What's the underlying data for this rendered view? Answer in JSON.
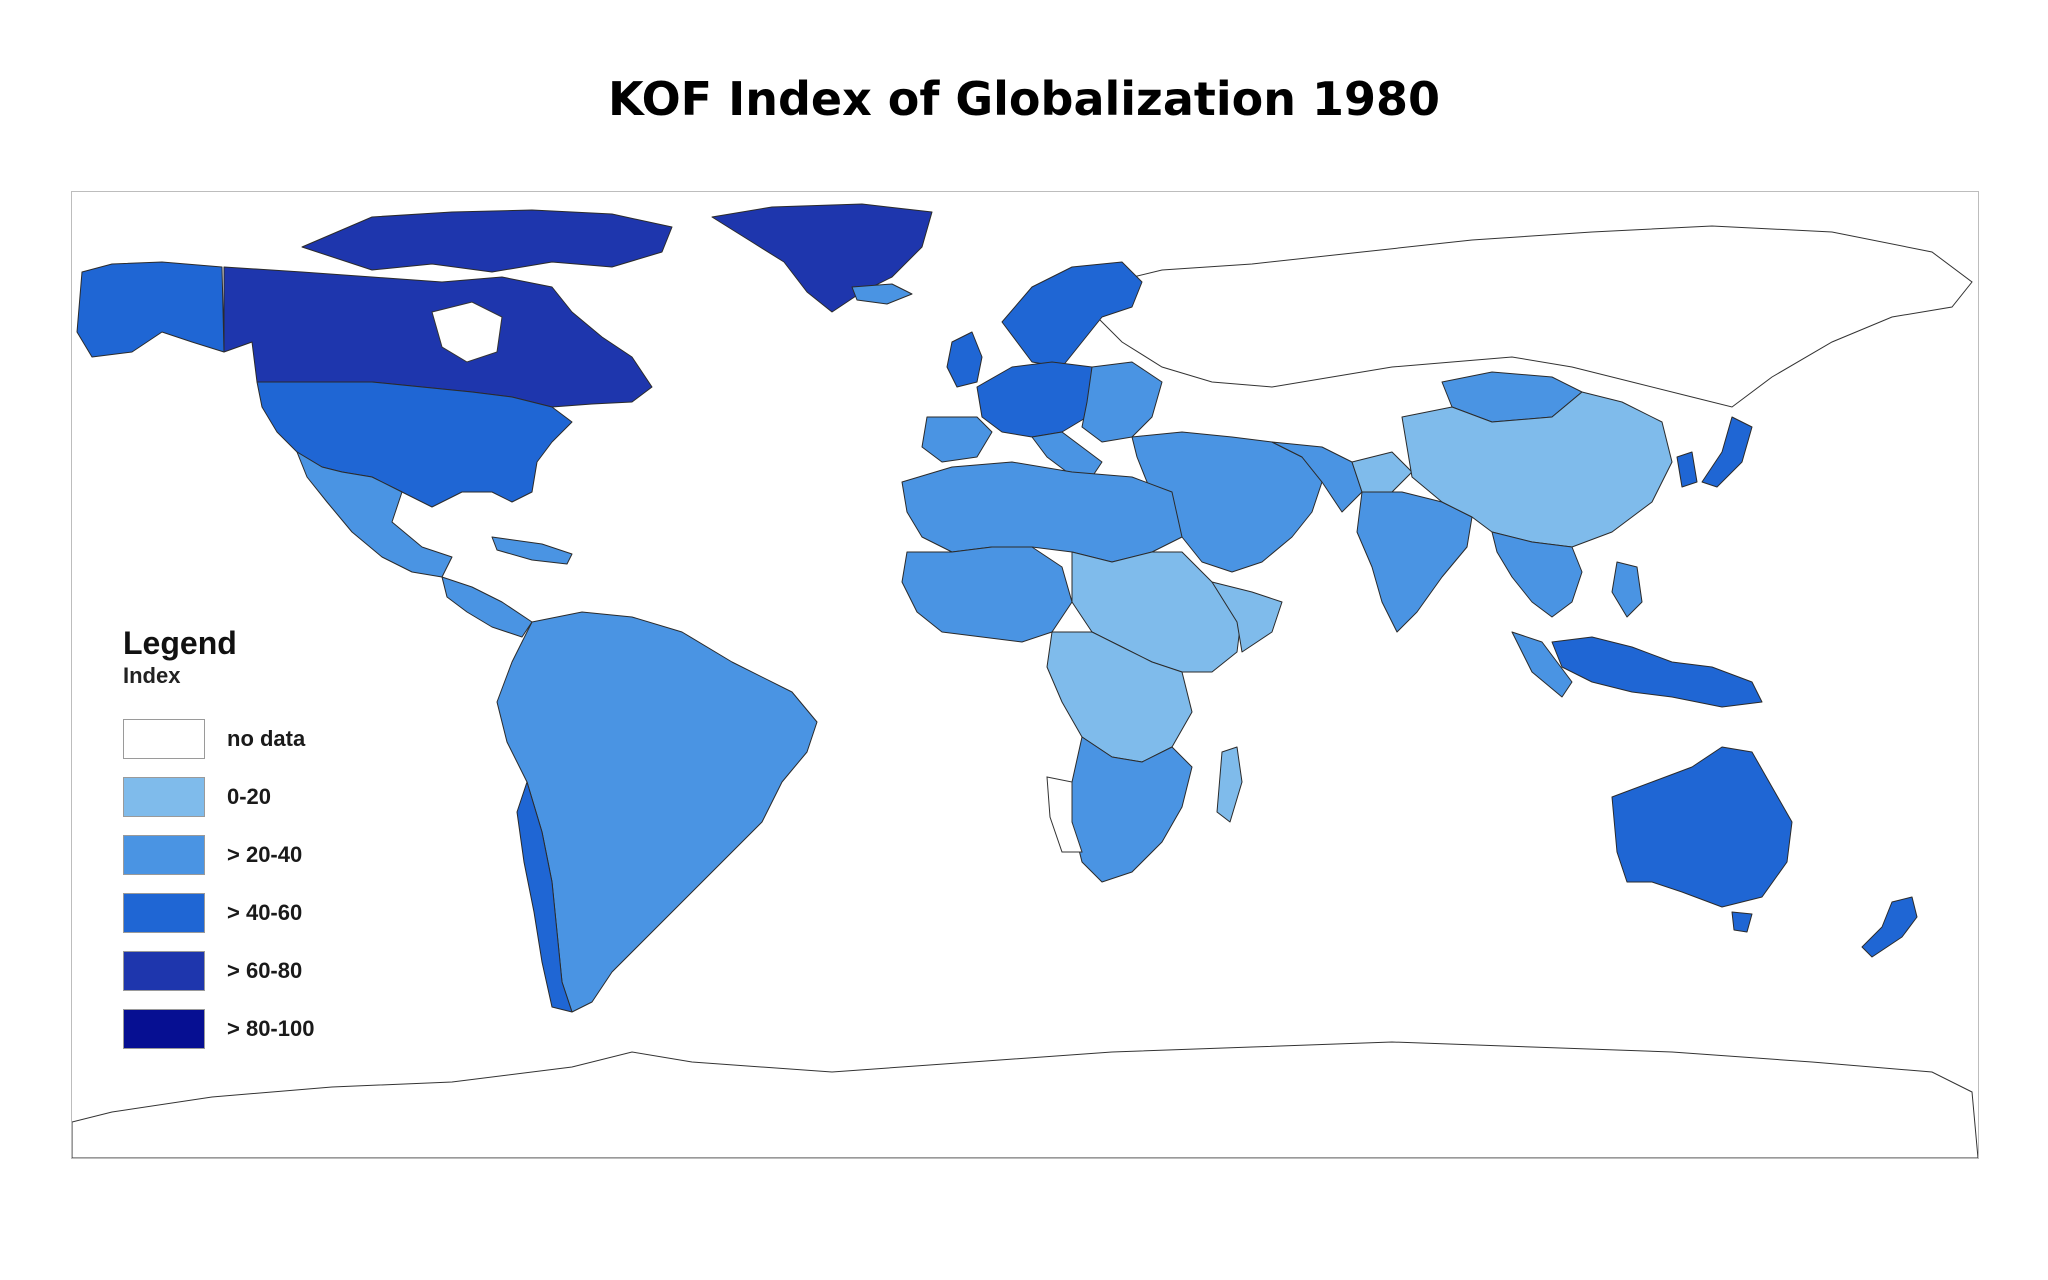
{
  "title": "KOF Index of Globalization 1980",
  "colors": {
    "no_data": "#ffffff",
    "c0_20": "#7fbbeb",
    "c20_40": "#4a94e3",
    "c40_60": "#1f66d4",
    "c60_80": "#1e36ad",
    "c80_100": "#060f92"
  },
  "legend": {
    "title": "Legend",
    "subtitle": "Index",
    "items": [
      {
        "label": "no data",
        "color": "#ffffff"
      },
      {
        "label": "0-20",
        "color": "#7fbbeb"
      },
      {
        "label": "> 20-40",
        "color": "#4a94e3"
      },
      {
        "label": "> 40-60",
        "color": "#1f66d4"
      },
      {
        "label": "> 60-80",
        "color": "#1e36ad"
      },
      {
        "label": "> 80-100",
        "color": "#060f92"
      }
    ]
  },
  "map": {
    "projection": "equirectangular world map",
    "regions": [
      {
        "id": "canada",
        "band": "> 60-80"
      },
      {
        "id": "greenland-arctic-islands",
        "band": "> 60-80"
      },
      {
        "id": "alaska",
        "band": "> 40-60"
      },
      {
        "id": "usa",
        "band": "> 40-60"
      },
      {
        "id": "mexico",
        "band": "> 20-40"
      },
      {
        "id": "central-america",
        "band": "> 20-40"
      },
      {
        "id": "south-america",
        "band": "> 20-40"
      },
      {
        "id": "chile",
        "band": "> 40-60"
      },
      {
        "id": "western-europe",
        "band": "> 40-60"
      },
      {
        "id": "scandinavia",
        "band": "> 40-60"
      },
      {
        "id": "iceland",
        "band": "> 20-40"
      },
      {
        "id": "iberia",
        "band": "> 20-40"
      },
      {
        "id": "eastern-europe",
        "band": "> 20-40"
      },
      {
        "id": "north-africa",
        "band": "> 20-40"
      },
      {
        "id": "west-africa",
        "band": "> 20-40"
      },
      {
        "id": "sahel-east-africa",
        "band": "0-20"
      },
      {
        "id": "central-africa",
        "band": "0-20"
      },
      {
        "id": "southern-africa",
        "band": "> 20-40"
      },
      {
        "id": "madagascar",
        "band": "0-20"
      },
      {
        "id": "middle-east",
        "band": "> 20-40"
      },
      {
        "id": "afghanistan",
        "band": "0-20"
      },
      {
        "id": "india",
        "band": "> 20-40"
      },
      {
        "id": "mongolia",
        "band": "> 20-40"
      },
      {
        "id": "china",
        "band": "0-20"
      },
      {
        "id": "japan",
        "band": "> 40-60"
      },
      {
        "id": "southeast-asia",
        "band": "> 20-40"
      },
      {
        "id": "malaysia",
        "band": "> 40-60"
      },
      {
        "id": "australia",
        "band": "> 40-60"
      },
      {
        "id": "new-zealand",
        "band": "> 40-60"
      },
      {
        "id": "soviet-union",
        "band": "no data"
      },
      {
        "id": "antarctica",
        "band": "no data"
      }
    ]
  }
}
